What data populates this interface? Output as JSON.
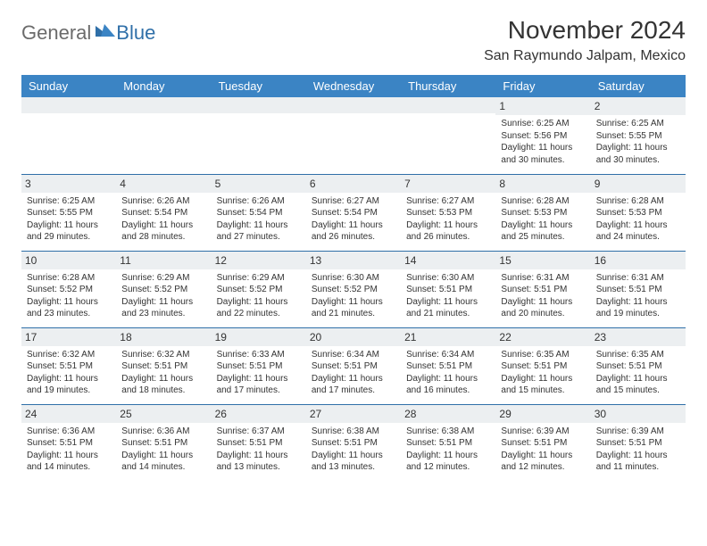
{
  "logo": {
    "part1": "General",
    "part2": "Blue"
  },
  "title": "November 2024",
  "location": "San Raymundo Jalpam, Mexico",
  "colors": {
    "header_bg": "#3b84c4",
    "header_text": "#ffffff",
    "daynum_bg": "#eceff1",
    "border": "#2f6fa8",
    "text": "#333333",
    "logo_gray": "#6b6b6b",
    "logo_blue": "#2f6fa8"
  },
  "day_headers": [
    "Sunday",
    "Monday",
    "Tuesday",
    "Wednesday",
    "Thursday",
    "Friday",
    "Saturday"
  ],
  "weeks": [
    [
      {
        "n": "",
        "lines": []
      },
      {
        "n": "",
        "lines": []
      },
      {
        "n": "",
        "lines": []
      },
      {
        "n": "",
        "lines": []
      },
      {
        "n": "",
        "lines": []
      },
      {
        "n": "1",
        "lines": [
          "Sunrise: 6:25 AM",
          "Sunset: 5:56 PM",
          "Daylight: 11 hours and 30 minutes."
        ]
      },
      {
        "n": "2",
        "lines": [
          "Sunrise: 6:25 AM",
          "Sunset: 5:55 PM",
          "Daylight: 11 hours and 30 minutes."
        ]
      }
    ],
    [
      {
        "n": "3",
        "lines": [
          "Sunrise: 6:25 AM",
          "Sunset: 5:55 PM",
          "Daylight: 11 hours and 29 minutes."
        ]
      },
      {
        "n": "4",
        "lines": [
          "Sunrise: 6:26 AM",
          "Sunset: 5:54 PM",
          "Daylight: 11 hours and 28 minutes."
        ]
      },
      {
        "n": "5",
        "lines": [
          "Sunrise: 6:26 AM",
          "Sunset: 5:54 PM",
          "Daylight: 11 hours and 27 minutes."
        ]
      },
      {
        "n": "6",
        "lines": [
          "Sunrise: 6:27 AM",
          "Sunset: 5:54 PM",
          "Daylight: 11 hours and 26 minutes."
        ]
      },
      {
        "n": "7",
        "lines": [
          "Sunrise: 6:27 AM",
          "Sunset: 5:53 PM",
          "Daylight: 11 hours and 26 minutes."
        ]
      },
      {
        "n": "8",
        "lines": [
          "Sunrise: 6:28 AM",
          "Sunset: 5:53 PM",
          "Daylight: 11 hours and 25 minutes."
        ]
      },
      {
        "n": "9",
        "lines": [
          "Sunrise: 6:28 AM",
          "Sunset: 5:53 PM",
          "Daylight: 11 hours and 24 minutes."
        ]
      }
    ],
    [
      {
        "n": "10",
        "lines": [
          "Sunrise: 6:28 AM",
          "Sunset: 5:52 PM",
          "Daylight: 11 hours and 23 minutes."
        ]
      },
      {
        "n": "11",
        "lines": [
          "Sunrise: 6:29 AM",
          "Sunset: 5:52 PM",
          "Daylight: 11 hours and 23 minutes."
        ]
      },
      {
        "n": "12",
        "lines": [
          "Sunrise: 6:29 AM",
          "Sunset: 5:52 PM",
          "Daylight: 11 hours and 22 minutes."
        ]
      },
      {
        "n": "13",
        "lines": [
          "Sunrise: 6:30 AM",
          "Sunset: 5:52 PM",
          "Daylight: 11 hours and 21 minutes."
        ]
      },
      {
        "n": "14",
        "lines": [
          "Sunrise: 6:30 AM",
          "Sunset: 5:51 PM",
          "Daylight: 11 hours and 21 minutes."
        ]
      },
      {
        "n": "15",
        "lines": [
          "Sunrise: 6:31 AM",
          "Sunset: 5:51 PM",
          "Daylight: 11 hours and 20 minutes."
        ]
      },
      {
        "n": "16",
        "lines": [
          "Sunrise: 6:31 AM",
          "Sunset: 5:51 PM",
          "Daylight: 11 hours and 19 minutes."
        ]
      }
    ],
    [
      {
        "n": "17",
        "lines": [
          "Sunrise: 6:32 AM",
          "Sunset: 5:51 PM",
          "Daylight: 11 hours and 19 minutes."
        ]
      },
      {
        "n": "18",
        "lines": [
          "Sunrise: 6:32 AM",
          "Sunset: 5:51 PM",
          "Daylight: 11 hours and 18 minutes."
        ]
      },
      {
        "n": "19",
        "lines": [
          "Sunrise: 6:33 AM",
          "Sunset: 5:51 PM",
          "Daylight: 11 hours and 17 minutes."
        ]
      },
      {
        "n": "20",
        "lines": [
          "Sunrise: 6:34 AM",
          "Sunset: 5:51 PM",
          "Daylight: 11 hours and 17 minutes."
        ]
      },
      {
        "n": "21",
        "lines": [
          "Sunrise: 6:34 AM",
          "Sunset: 5:51 PM",
          "Daylight: 11 hours and 16 minutes."
        ]
      },
      {
        "n": "22",
        "lines": [
          "Sunrise: 6:35 AM",
          "Sunset: 5:51 PM",
          "Daylight: 11 hours and 15 minutes."
        ]
      },
      {
        "n": "23",
        "lines": [
          "Sunrise: 6:35 AM",
          "Sunset: 5:51 PM",
          "Daylight: 11 hours and 15 minutes."
        ]
      }
    ],
    [
      {
        "n": "24",
        "lines": [
          "Sunrise: 6:36 AM",
          "Sunset: 5:51 PM",
          "Daylight: 11 hours and 14 minutes."
        ]
      },
      {
        "n": "25",
        "lines": [
          "Sunrise: 6:36 AM",
          "Sunset: 5:51 PM",
          "Daylight: 11 hours and 14 minutes."
        ]
      },
      {
        "n": "26",
        "lines": [
          "Sunrise: 6:37 AM",
          "Sunset: 5:51 PM",
          "Daylight: 11 hours and 13 minutes."
        ]
      },
      {
        "n": "27",
        "lines": [
          "Sunrise: 6:38 AM",
          "Sunset: 5:51 PM",
          "Daylight: 11 hours and 13 minutes."
        ]
      },
      {
        "n": "28",
        "lines": [
          "Sunrise: 6:38 AM",
          "Sunset: 5:51 PM",
          "Daylight: 11 hours and 12 minutes."
        ]
      },
      {
        "n": "29",
        "lines": [
          "Sunrise: 6:39 AM",
          "Sunset: 5:51 PM",
          "Daylight: 11 hours and 12 minutes."
        ]
      },
      {
        "n": "30",
        "lines": [
          "Sunrise: 6:39 AM",
          "Sunset: 5:51 PM",
          "Daylight: 11 hours and 11 minutes."
        ]
      }
    ]
  ]
}
